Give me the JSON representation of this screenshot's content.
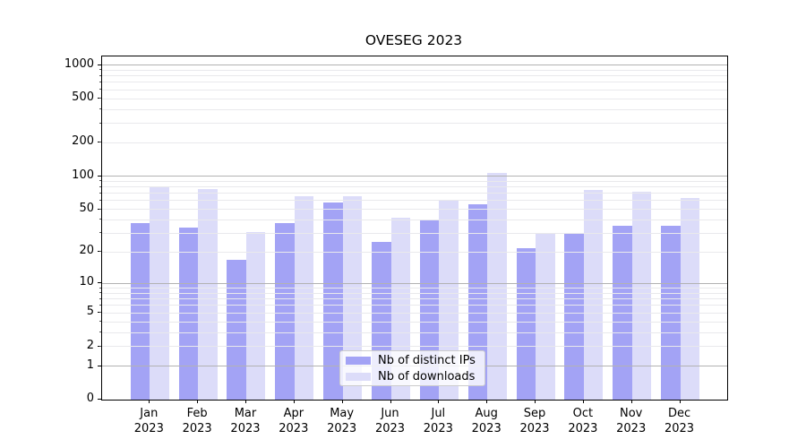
{
  "chart": {
    "title": "OVESEG 2023",
    "legend": {
      "items": [
        {
          "label": "Nb of distinct IPs",
          "color": "#a3a3f5"
        },
        {
          "label": "Nb of downloads",
          "color": "#dcdcf9"
        }
      ]
    },
    "y_axis": {
      "labeled_ticks": [
        0,
        1,
        2,
        5,
        10,
        20,
        50,
        100,
        200,
        500,
        1000
      ],
      "major_gridlines": [
        1,
        10,
        100,
        1000
      ],
      "minor_gridlines": [
        2,
        3,
        4,
        5,
        6,
        7,
        8,
        9,
        20,
        30,
        40,
        50,
        60,
        70,
        80,
        90,
        200,
        300,
        400,
        500,
        600,
        700,
        800,
        900
      ]
    },
    "x_axis": {
      "months": [
        "Jan",
        "Feb",
        "Mar",
        "Apr",
        "May",
        "Jun",
        "Jul",
        "Aug",
        "Sep",
        "Oct",
        "Nov",
        "Dec"
      ],
      "year": "2023"
    }
  },
  "chart_data": {
    "type": "bar",
    "title": "OVESEG 2023",
    "categories": [
      "Jan 2023",
      "Feb 2023",
      "Mar 2023",
      "Apr 2023",
      "May 2023",
      "Jun 2023",
      "Jul 2023",
      "Aug 2023",
      "Sep 2023",
      "Oct 2023",
      "Nov 2023",
      "Dec 2023"
    ],
    "series": [
      {
        "name": "Nb of distinct IPs",
        "color": "#a3a3f5",
        "values": [
          37,
          34,
          17,
          37,
          58,
          25,
          40,
          55,
          22,
          30,
          35,
          35
        ]
      },
      {
        "name": "Nb of downloads",
        "color": "#dcdcf9",
        "values": [
          80,
          77,
          31,
          66,
          66,
          42,
          60,
          107,
          30,
          75,
          72,
          63
        ]
      }
    ],
    "xlabel": "",
    "ylabel": "",
    "y_scale": "log1p",
    "y_ticks": [
      0,
      1,
      2,
      5,
      10,
      20,
      50,
      100,
      200,
      500,
      1000
    ],
    "ylim": [
      0,
      1190
    ],
    "grid": true,
    "legend_position": "lower center"
  }
}
